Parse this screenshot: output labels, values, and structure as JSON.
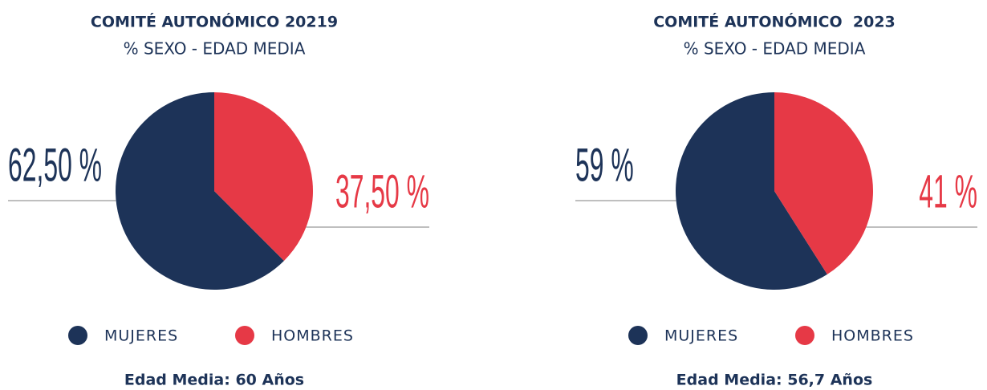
{
  "chart_data": [
    {
      "type": "pie",
      "title": "COMITÉ AUTONÓMICO 20219",
      "subtitle": "% SEXO - EDAD MEDIA",
      "categories": [
        "MUJERES",
        "HOMBRES"
      ],
      "values": [
        62.5,
        37.5
      ],
      "value_labels": [
        "62,50 %",
        "37,50 %"
      ],
      "colors": [
        "#1d3358",
        "#e63946"
      ],
      "footer": "Edad Media: 60 Años"
    },
    {
      "type": "pie",
      "title": "COMITÉ AUTONÓMICO  2023",
      "subtitle": "% SEXO - EDAD MEDIA",
      "categories": [
        "MUJERES",
        "HOMBRES"
      ],
      "values": [
        59,
        41
      ],
      "value_labels": [
        "59 %",
        "41 %"
      ],
      "colors": [
        "#1d3358",
        "#e63946"
      ],
      "footer": "Edad Media: 56,7 Años"
    }
  ]
}
